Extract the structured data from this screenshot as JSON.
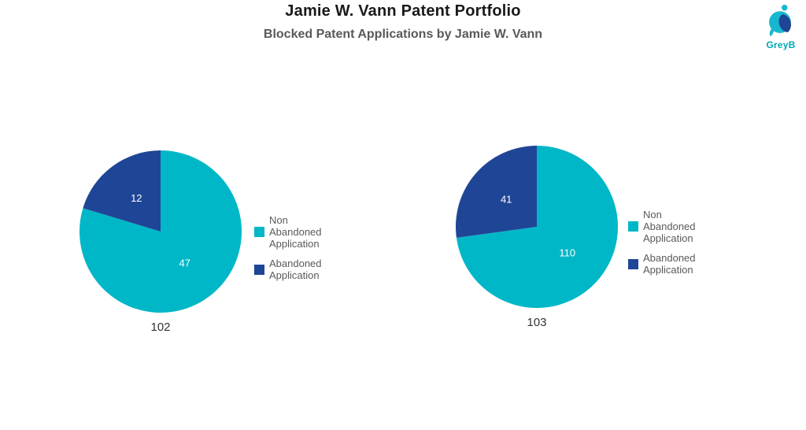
{
  "header": {
    "title": "Jamie W. Vann Patent Portfolio",
    "subtitle": "Blocked Patent Applications by Jamie W. Vann",
    "logo_text": "GreyB"
  },
  "colors": {
    "teal": "#00b7c7",
    "dark_blue": "#1f4596",
    "title": "#1a1a1a",
    "subtitle": "#595959",
    "legend_text": "#5a5a5a",
    "pie_value_text": "#ffffff",
    "pie_label_text": "#333333"
  },
  "chart_data": [
    {
      "type": "pie",
      "label": "102",
      "start_angle_deg": 0,
      "direction": "clockwise",
      "legend_position": "right",
      "slices": [
        {
          "name": "Non Abandoned Application",
          "value": 47,
          "color": "#00b7c7"
        },
        {
          "name": "Abandoned Application",
          "value": 12,
          "color": "#1f4596"
        }
      ]
    },
    {
      "type": "pie",
      "label": "103",
      "start_angle_deg": 0,
      "direction": "clockwise",
      "legend_position": "right",
      "slices": [
        {
          "name": "Non Abandoned Application",
          "value": 110,
          "color": "#00b7c7"
        },
        {
          "name": "Abandoned Application",
          "value": 41,
          "color": "#1f4596"
        }
      ]
    }
  ]
}
